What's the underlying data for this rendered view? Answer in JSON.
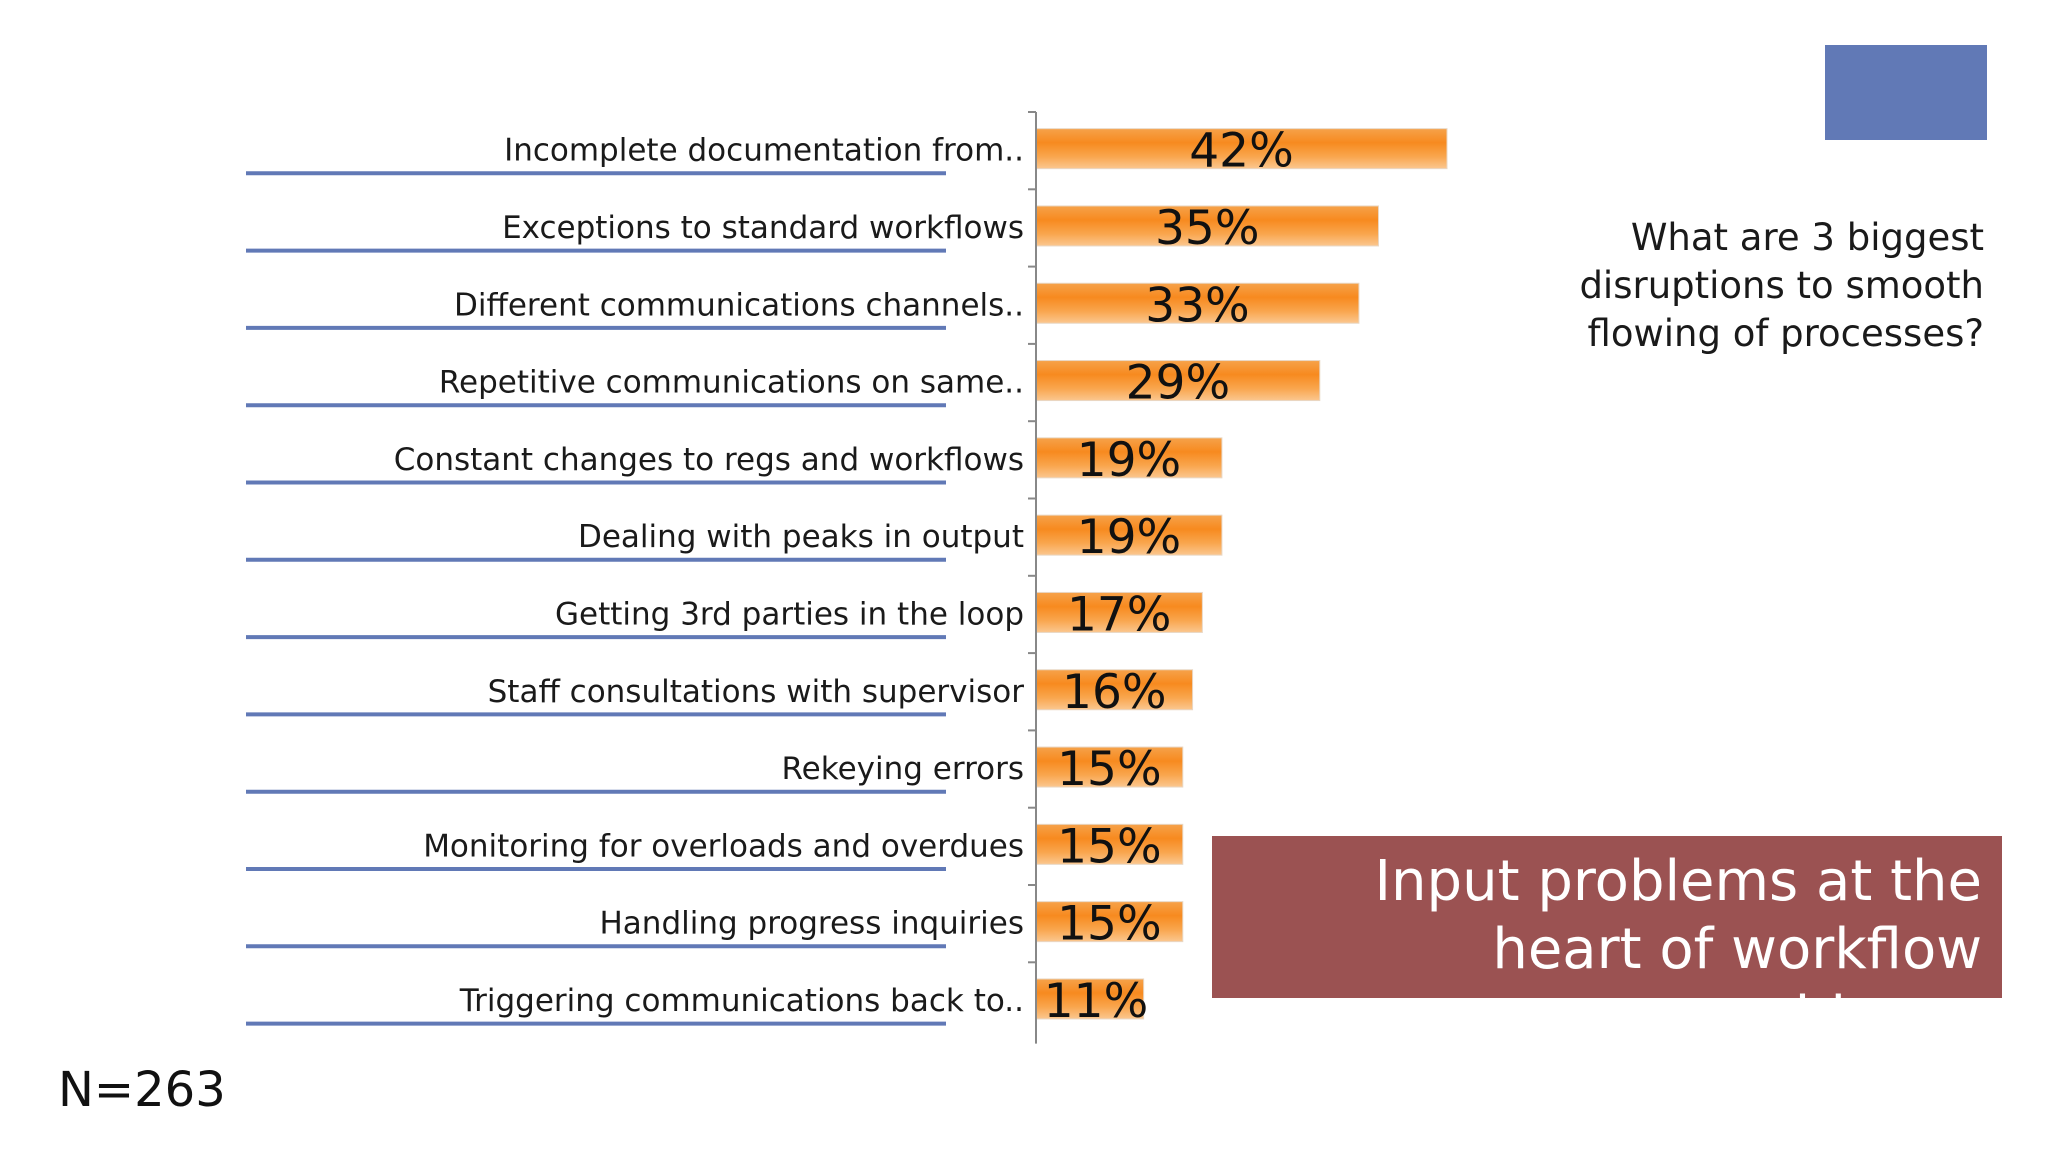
{
  "chart_data": {
    "type": "bar",
    "orientation": "horizontal",
    "categories": [
      "Incomplete documentation from..",
      "Exceptions to standard workflows",
      "Different communications channels..",
      "Repetitive communications on same..",
      "Constant changes to regs and workflows",
      "Dealing with peaks in output",
      "Getting 3rd parties in the loop",
      "Staff consultations with supervisor",
      "Rekeying errors",
      "Monitoring for overloads and overdues",
      "Handling progress inquiries",
      "Triggering communications back to.."
    ],
    "values": [
      42,
      35,
      33,
      29,
      19,
      19,
      17,
      16,
      15,
      15,
      15,
      11
    ],
    "value_labels": [
      "42%",
      "35%",
      "33%",
      "29%",
      "19%",
      "19%",
      "17%",
      "16%",
      "15%",
      "15%",
      "15%",
      "11%"
    ],
    "xlim": [
      0,
      100
    ],
    "unit": "%",
    "grid": false,
    "bar_color": "#f7962b",
    "divider_color": "#6179b6"
  },
  "question": "What are 3 biggest disruptions to smooth flowing of processes?",
  "callout": {
    "text": "Input problems at the heart of workflow problems.",
    "color": "#9b5252"
  },
  "sample_size": "N=263",
  "accent_box_color": "#6179b6"
}
